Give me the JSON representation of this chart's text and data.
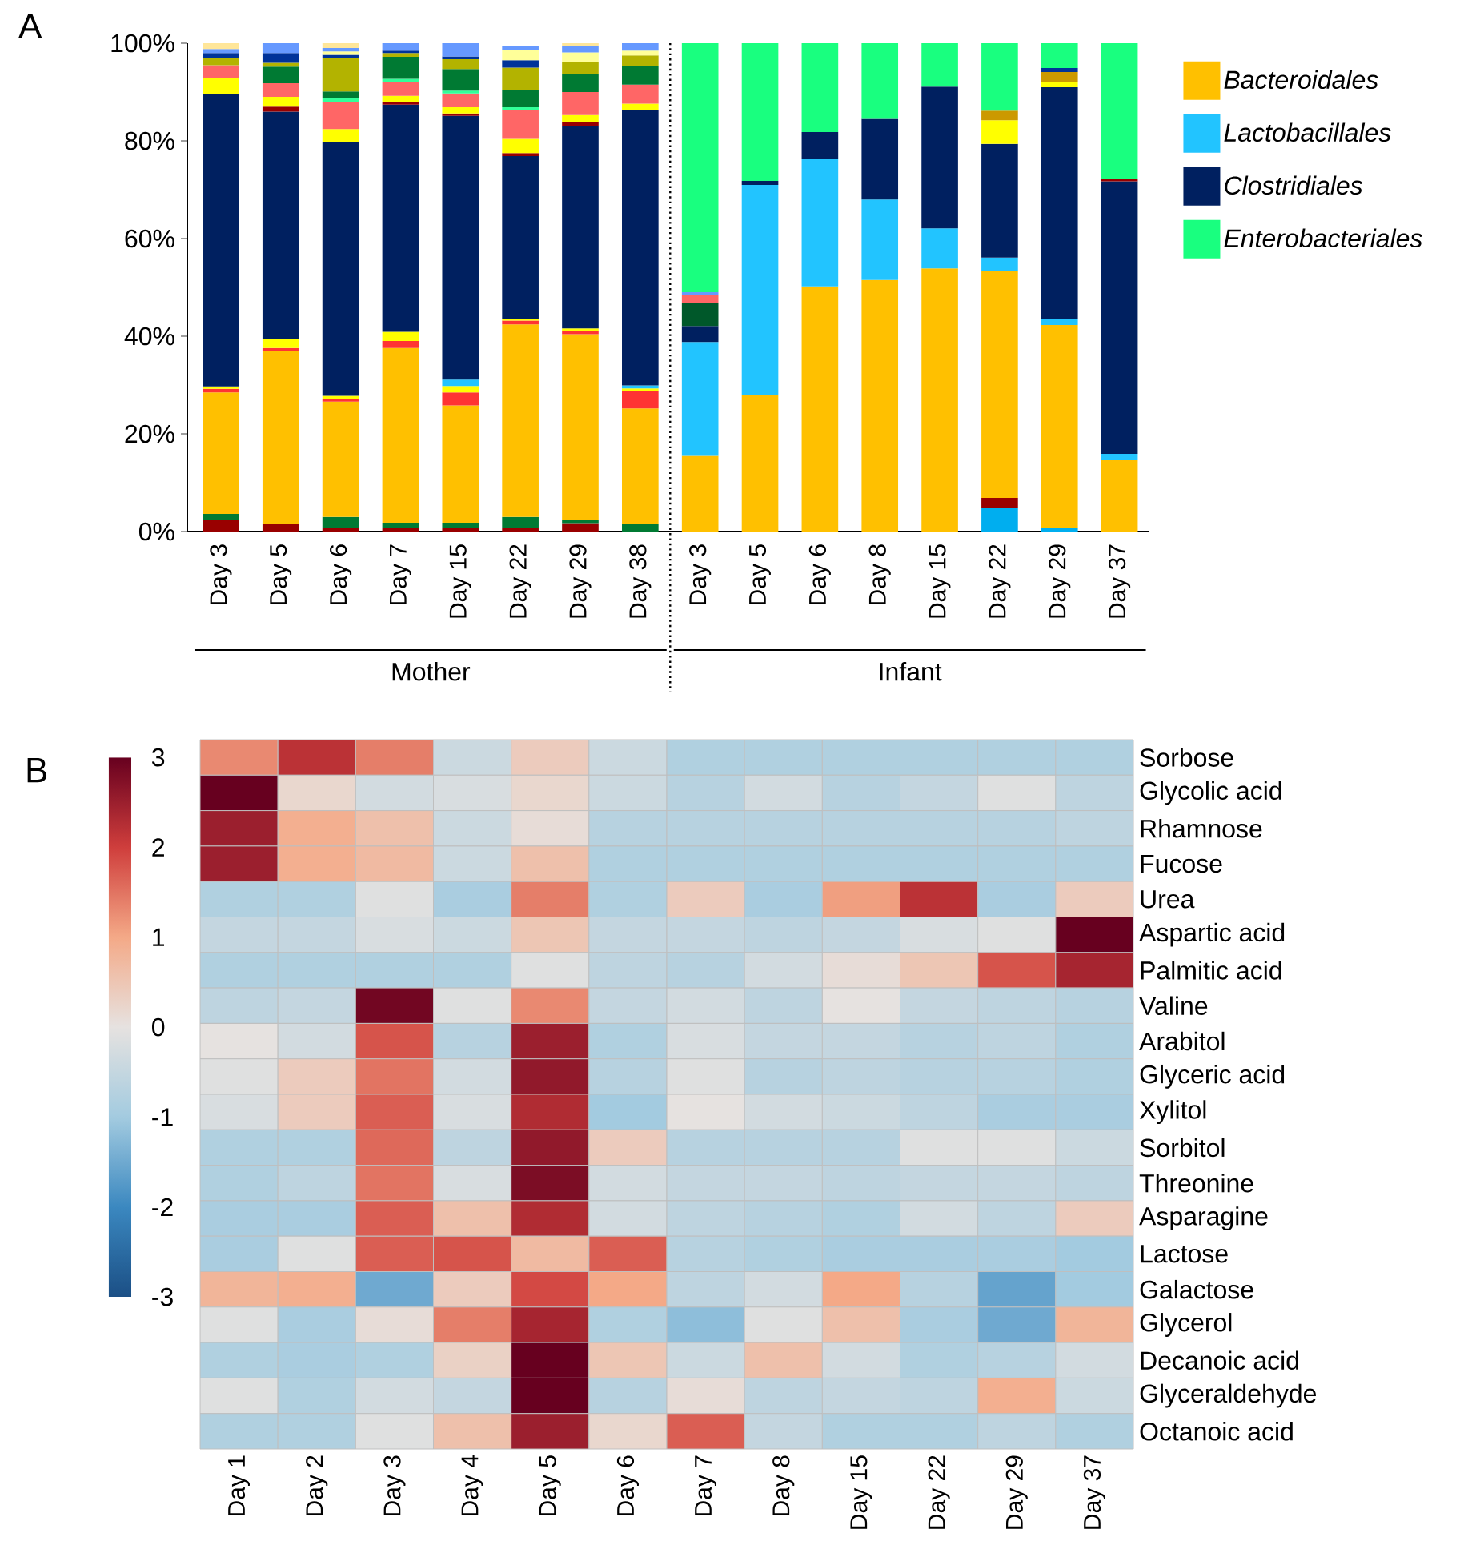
{
  "chart_data": [
    {
      "type": "bar",
      "stacked": true,
      "legend": "right",
      "annotations": [
        "A",
        "Mother",
        "Infant"
      ],
      "categories": [
        "Day 3",
        "Day 5",
        "Day 6",
        "Day 7",
        "Day 15",
        "Day 22",
        "Day 29",
        "Day 38",
        "Day 3",
        "Day 5",
        "Day 6",
        "Day 8",
        "Day 15",
        "Day 22",
        "Day 29",
        "Day 37"
      ],
      "ylim": [
        0,
        100
      ],
      "yticks": [
        {
          "value": 0,
          "label": "0%"
        },
        {
          "value": 20,
          "label": "20%"
        },
        {
          "value": 40,
          "label": "40%"
        },
        {
          "value": 60,
          "label": "60%"
        },
        {
          "value": 80,
          "label": "80%"
        },
        {
          "value": 100,
          "label": "100%"
        }
      ],
      "series": [
        {
          "color": "#00aeef",
          "values": [
            null,
            null,
            null,
            null,
            null,
            null,
            null,
            null,
            null,
            null,
            null,
            null,
            null,
            4.8,
            0.8,
            null
          ]
        },
        {
          "color": "#990000",
          "values": [
            2.4,
            1.5,
            0.8,
            0.8,
            0.8,
            0.8,
            1.7,
            null,
            null,
            null,
            null,
            null,
            null,
            2.1,
            null,
            null
          ]
        },
        {
          "color": "#007a33",
          "values": [
            1.2,
            null,
            2.2,
            1.0,
            1.0,
            2.2,
            0.7,
            1.6,
            null,
            null,
            null,
            null,
            null,
            null,
            null,
            null
          ]
        },
        {
          "name": "Bacteroidales",
          "color": "#ffc000",
          "values": [
            24.9,
            35.5,
            23.6,
            35.8,
            24.0,
            39.4,
            38.0,
            23.6,
            15.5,
            28.0,
            50.2,
            51.5,
            53.9,
            46.5,
            41.5,
            14.6
          ]
        },
        {
          "color": "#ff3333",
          "values": [
            0.7,
            0.6,
            0.6,
            1.4,
            2.7,
            0.8,
            0.6,
            3.5,
            null,
            null,
            null,
            null,
            null,
            null,
            null,
            null
          ]
        },
        {
          "color": "#ffff00",
          "values": [
            0.5,
            1.9,
            0.6,
            1.9,
            1.3,
            0.4,
            0.6,
            0.6,
            null,
            null,
            null,
            null,
            null,
            null,
            null,
            null
          ]
        },
        {
          "name": "Lactobacillales",
          "color": "#22c4ff",
          "values": [
            null,
            null,
            null,
            null,
            1.3,
            null,
            null,
            0.6,
            23.3,
            43.0,
            26.1,
            16.5,
            8.2,
            2.7,
            1.3,
            1.3
          ]
        },
        {
          "name": "Clostridiales",
          "color": "#002060",
          "values": [
            59.9,
            46.5,
            52.0,
            46.5,
            54.0,
            33.3,
            41.5,
            56.5,
            3.3,
            0.8,
            5.5,
            16.5,
            29.0,
            23.3,
            47.4,
            55.8
          ]
        },
        {
          "color": "#990000",
          "values": [
            null,
            1.0,
            null,
            0.5,
            0.5,
            0.6,
            0.8,
            null,
            null,
            null,
            null,
            null,
            null,
            null,
            null,
            0.6
          ]
        },
        {
          "color": "#ffff00",
          "values": [
            3.3,
            2.0,
            2.6,
            1.3,
            1.3,
            2.9,
            1.4,
            1.2,
            null,
            null,
            null,
            null,
            null,
            4.8,
            1.1,
            null
          ]
        },
        {
          "color": "#00582a",
          "values": [
            null,
            null,
            null,
            null,
            null,
            null,
            null,
            null,
            4.8,
            null,
            null,
            null,
            null,
            null,
            null,
            null
          ]
        },
        {
          "color": "#ff6666",
          "values": [
            2.6,
            2.8,
            5.6,
            2.8,
            2.8,
            5.9,
            4.7,
            3.9,
            1.5,
            null,
            null,
            null,
            null,
            null,
            null,
            null
          ]
        },
        {
          "color": "#33ff99",
          "values": [
            null,
            null,
            0.7,
            0.7,
            0.6,
            0.6,
            null,
            null,
            null,
            null,
            null,
            null,
            null,
            null,
            null,
            null
          ]
        },
        {
          "color": "#007a33",
          "values": [
            null,
            3.4,
            1.4,
            4.5,
            4.4,
            3.5,
            3.6,
            3.9,
            null,
            null,
            null,
            null,
            null,
            null,
            null,
            null
          ]
        },
        {
          "color": "#b3b300",
          "values": [
            1.5,
            0.8,
            6.9,
            0.8,
            2.0,
            4.6,
            2.6,
            2.1,
            null,
            null,
            null,
            null,
            null,
            null,
            null,
            null
          ]
        },
        {
          "color": "#cc9900",
          "values": [
            null,
            null,
            null,
            null,
            null,
            null,
            null,
            null,
            null,
            null,
            null,
            null,
            null,
            2.0,
            2.0,
            null
          ]
        },
        {
          "color": "#003399",
          "values": [
            1.0,
            2.0,
            0.6,
            0.5,
            0.6,
            1.5,
            null,
            null,
            null,
            null,
            null,
            null,
            null,
            null,
            0.8,
            null
          ]
        },
        {
          "color": "#ffff99",
          "values": [
            null,
            null,
            0.7,
            null,
            null,
            2.2,
            1.9,
            1.0,
            null,
            null,
            null,
            null,
            null,
            null,
            null,
            null
          ]
        },
        {
          "color": "#6699ff",
          "values": [
            0.8,
            2.0,
            0.7,
            1.5,
            2.7,
            0.7,
            1.3,
            1.5,
            0.6,
            null,
            null,
            null,
            null,
            null,
            null,
            null
          ]
        },
        {
          "color": "#ffe699",
          "values": [
            1.2,
            null,
            1.0,
            null,
            null,
            null,
            0.6,
            null,
            null,
            null,
            null,
            null,
            null,
            null,
            null,
            null
          ]
        },
        {
          "name": "Enterobacteriales",
          "color": "#19ff7f",
          "values": [
            null,
            null,
            null,
            null,
            null,
            null,
            null,
            null,
            51.0,
            28.2,
            18.2,
            15.5,
            8.9,
            13.8,
            5.1,
            27.7
          ]
        }
      ]
    },
    {
      "type": "heatmap",
      "annotations": [
        "B"
      ],
      "categories": [
        "Day 1",
        "Day 2",
        "Day 3",
        "Day 4",
        "Day 5",
        "Day 6",
        "Day 7",
        "Day 8",
        "Day 15",
        "Day 22",
        "Day 29",
        "Day 37"
      ],
      "y_categories": [
        "Sorbose",
        "Glycolic acid",
        "Rhamnose",
        "Fucose",
        "Urea",
        "Aspartic acid",
        "Palmitic acid",
        "Valine",
        "Arabitol",
        "Glyceric acid",
        "Xylitol",
        "Sorbitol",
        "Threonine",
        "Asparagine",
        "Lactose",
        "Galactose",
        "Glycerol",
        "Decanoic acid",
        "Glyceraldehyde",
        "Octanoic acid"
      ],
      "clim": [
        -3,
        3
      ],
      "cticks": [
        -3,
        -2,
        -1,
        0,
        1,
        2,
        3
      ],
      "cells": [
        [
          1.3,
          2.2,
          1.4,
          -0.4,
          0.4,
          -0.4,
          -0.8,
          -0.8,
          -0.8,
          -0.8,
          -0.8,
          -0.8
        ],
        [
          3.0,
          0.2,
          -0.3,
          -0.2,
          0.2,
          -0.4,
          -0.7,
          -0.3,
          -0.7,
          -0.5,
          -0.1,
          -0.6
        ],
        [
          2.5,
          0.9,
          0.6,
          -0.4,
          0.1,
          -0.7,
          -0.7,
          -0.7,
          -0.7,
          -0.7,
          -0.7,
          -0.6
        ],
        [
          2.5,
          0.9,
          0.7,
          -0.4,
          0.6,
          -0.8,
          -0.8,
          -0.8,
          -0.8,
          -0.8,
          -0.8,
          -0.8
        ],
        [
          -0.8,
          -0.8,
          -0.1,
          -0.9,
          1.4,
          -0.8,
          0.4,
          -0.9,
          1.1,
          2.2,
          -0.9,
          0.4
        ],
        [
          -0.5,
          -0.5,
          -0.2,
          -0.4,
          0.5,
          -0.5,
          -0.5,
          -0.6,
          -0.5,
          -0.2,
          -0.1,
          3.0
        ],
        [
          -0.8,
          -0.8,
          -0.8,
          -0.8,
          -0.1,
          -0.6,
          -0.7,
          -0.3,
          0.1,
          0.5,
          1.8,
          2.4
        ],
        [
          -0.6,
          -0.5,
          2.9,
          -0.1,
          1.3,
          -0.5,
          -0.3,
          -0.6,
          0.0,
          -0.5,
          -0.6,
          -0.7
        ],
        [
          0.0,
          -0.3,
          1.8,
          -0.7,
          2.5,
          -0.8,
          -0.2,
          -0.5,
          -0.5,
          -0.7,
          -0.6,
          -0.8
        ],
        [
          -0.1,
          0.4,
          1.5,
          -0.3,
          2.6,
          -0.7,
          -0.1,
          -0.7,
          -0.6,
          -0.7,
          -0.7,
          -0.8
        ],
        [
          -0.2,
          0.4,
          1.7,
          -0.2,
          2.3,
          -1.0,
          0.0,
          -0.3,
          -0.4,
          -0.6,
          -0.9,
          -0.9
        ],
        [
          -0.8,
          -0.8,
          1.6,
          -0.6,
          2.6,
          0.4,
          -0.7,
          -0.7,
          -0.7,
          -0.1,
          -0.1,
          -0.4
        ],
        [
          -0.8,
          -0.6,
          1.5,
          -0.2,
          2.8,
          -0.3,
          -0.5,
          -0.5,
          -0.6,
          -0.5,
          -0.5,
          -0.6
        ],
        [
          -0.9,
          -0.9,
          1.7,
          0.6,
          2.3,
          -0.3,
          -0.6,
          -0.7,
          -0.8,
          -0.3,
          -0.6,
          0.4
        ],
        [
          -0.9,
          -0.1,
          1.7,
          1.8,
          0.7,
          1.7,
          -0.7,
          -0.8,
          -0.9,
          -0.9,
          -0.9,
          -1.0
        ],
        [
          0.8,
          0.9,
          -1.5,
          0.4,
          1.9,
          1.0,
          -0.6,
          -0.3,
          1.0,
          -0.7,
          -1.6,
          -1.0
        ],
        [
          -0.1,
          -0.9,
          0.1,
          1.4,
          2.4,
          -0.8,
          -1.2,
          -0.1,
          0.6,
          -0.9,
          -1.5,
          0.8
        ],
        [
          -0.8,
          -0.9,
          -0.8,
          0.3,
          3.0,
          0.5,
          -0.4,
          0.6,
          -0.3,
          -0.8,
          -0.7,
          -0.3
        ],
        [
          -0.1,
          -0.8,
          -0.3,
          -0.5,
          3.0,
          -0.7,
          0.1,
          -0.6,
          -0.5,
          -0.6,
          0.9,
          -0.4
        ],
        [
          -0.8,
          -0.8,
          -0.1,
          0.6,
          2.5,
          0.2,
          1.7,
          -0.5,
          -0.8,
          -0.8,
          -0.6,
          -0.8
        ]
      ]
    }
  ]
}
